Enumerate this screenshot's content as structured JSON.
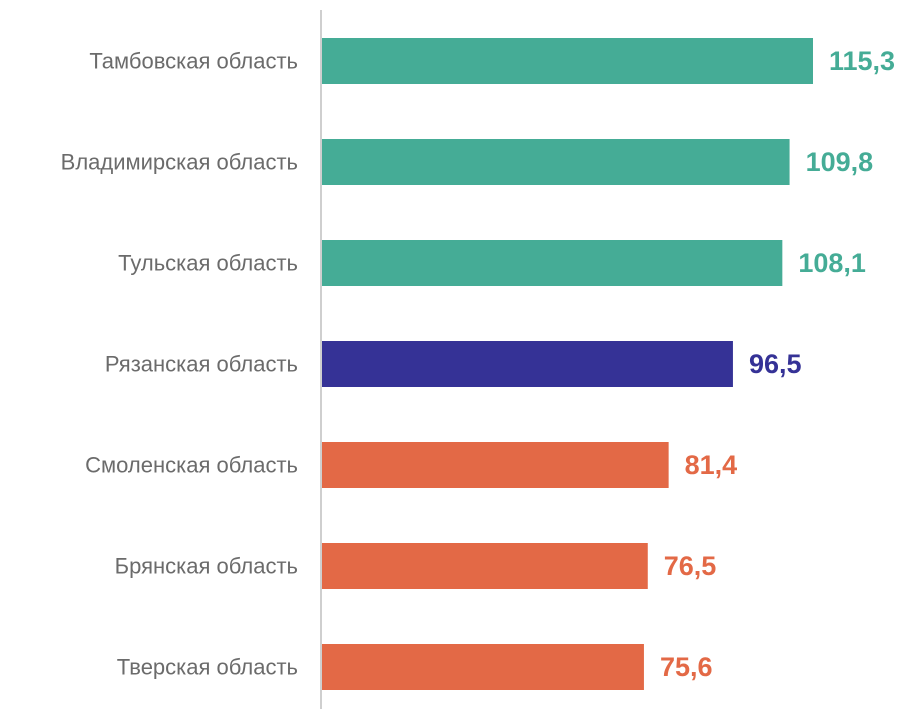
{
  "chart_data": {
    "type": "bar",
    "orientation": "horizontal",
    "categories": [
      "Тамбовская область",
      "Владимирская область",
      "Тульская область",
      "Рязанская область",
      "Смоленская область",
      "Брянская область",
      "Тверская область"
    ],
    "values": [
      115.3,
      109.8,
      108.1,
      96.5,
      81.4,
      76.5,
      75.6
    ],
    "value_labels": [
      "115,3",
      "109,8",
      "108,1",
      "96,5",
      "81,4",
      "76,5",
      "75,6"
    ],
    "bar_colors": [
      "#45ac96",
      "#45ac96",
      "#45ac96",
      "#353296",
      "#e36946",
      "#e36946",
      "#e36946"
    ],
    "title": "",
    "xlabel": "",
    "ylabel": "",
    "xlim": [
      0,
      118
    ],
    "grid": false,
    "legend": "none"
  },
  "colors": {
    "above": "#45ac96",
    "highlight": "#353296",
    "below": "#e36946",
    "axis": "#bfbfbf",
    "category_text": "#6b6b6b"
  }
}
